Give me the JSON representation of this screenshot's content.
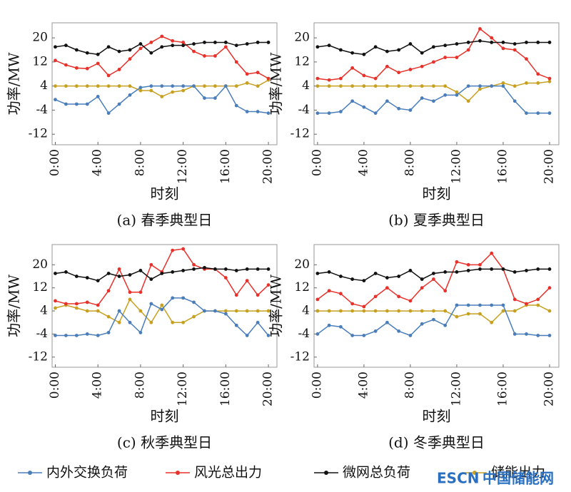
{
  "chart_data": [
    {
      "type": "line",
      "caption": "(a) 春季典型日",
      "xlabel": "时刻",
      "ylabel": "功率/MW",
      "x": [
        0,
        1,
        2,
        3,
        4,
        5,
        6,
        7,
        8,
        9,
        10,
        11,
        12,
        13,
        14,
        15,
        16,
        17,
        18,
        19,
        20
      ],
      "xlim": [
        -0.3,
        20.8
      ],
      "xticks": [
        {
          "value": 0,
          "label": "0:00"
        },
        {
          "value": 4,
          "label": "4:00"
        },
        {
          "value": 8,
          "label": "8:00"
        },
        {
          "value": 12,
          "label": "12:00"
        },
        {
          "value": 16,
          "label": "16:00"
        },
        {
          "value": 20,
          "label": "20:00"
        }
      ],
      "ylim": [
        -15.5,
        25
      ],
      "yticks": [
        -12,
        -4,
        4,
        12,
        20
      ],
      "series": [
        {
          "name": "内外交换负荷",
          "color": "#4a7ebb",
          "values": [
            -0.5,
            -2,
            -2,
            -2,
            0.5,
            -5,
            -2,
            1,
            3.5,
            4,
            4,
            4,
            4,
            4,
            0,
            0,
            4,
            -2.5,
            -4.5,
            -4.5,
            -5
          ]
        },
        {
          "name": "风光总出力",
          "color": "#e8312a",
          "values": [
            12.5,
            11,
            10,
            9.8,
            11.5,
            7.5,
            9.5,
            13,
            16.5,
            18.5,
            20.5,
            19,
            18.5,
            15.5,
            14,
            14,
            17,
            12,
            8,
            8.5,
            6.5
          ]
        },
        {
          "name": "微网总负荷",
          "color": "#111111",
          "values": [
            17,
            17.5,
            16,
            15,
            14.5,
            17,
            15.5,
            16,
            18,
            15,
            17,
            17.5,
            17.5,
            18,
            18.5,
            18.5,
            18.5,
            17.5,
            18,
            18.5,
            18.5
          ]
        },
        {
          "name": "储能出力",
          "color": "#c8a020",
          "values": [
            4,
            4,
            4,
            4,
            4,
            4,
            4,
            4,
            2.5,
            2.5,
            0.5,
            2,
            2.5,
            4,
            4,
            4,
            4,
            4,
            5,
            4,
            6
          ]
        }
      ]
    },
    {
      "type": "line",
      "caption": "(b) 夏季典型日",
      "xlabel": "时刻",
      "ylabel": "功率/MW",
      "x": [
        0,
        1,
        2,
        3,
        4,
        5,
        6,
        7,
        8,
        9,
        10,
        11,
        12,
        13,
        14,
        15,
        16,
        17,
        18,
        19,
        20
      ],
      "xlim": [
        -0.3,
        20.8
      ],
      "xticks": [
        {
          "value": 0,
          "label": "0:00"
        },
        {
          "value": 4,
          "label": "4:00"
        },
        {
          "value": 8,
          "label": "8:00"
        },
        {
          "value": 12,
          "label": "12:00"
        },
        {
          "value": 16,
          "label": "16:00"
        },
        {
          "value": 20,
          "label": "20:00"
        }
      ],
      "ylim": [
        -15.5,
        25
      ],
      "yticks": [
        -12,
        -4,
        4,
        12,
        20
      ],
      "series": [
        {
          "color": "#4a7ebb",
          "values": [
            -5,
            -5,
            -4.5,
            -1,
            -3,
            -5,
            -1,
            -3.5,
            -4,
            0,
            -1,
            1,
            1,
            4,
            4,
            4,
            4,
            -1,
            -5,
            -5,
            -5
          ]
        },
        {
          "color": "#e8312a",
          "values": [
            6.5,
            6,
            6.5,
            10,
            7.5,
            6.5,
            10.5,
            8.5,
            9.5,
            10.5,
            12,
            13.5,
            13.5,
            16,
            23,
            20,
            16.5,
            16,
            13,
            8,
            6.5
          ]
        },
        {
          "color": "#111111",
          "values": [
            17,
            17.5,
            16,
            15,
            14.5,
            17,
            15.5,
            16,
            18,
            15,
            17,
            17.5,
            18,
            18.5,
            19,
            18.5,
            18.5,
            18,
            18.5,
            18.5,
            18.5
          ]
        },
        {
          "color": "#c8a020",
          "values": [
            4,
            4,
            4,
            4,
            4,
            4,
            4,
            4,
            4,
            4,
            4,
            4,
            2,
            -1,
            3,
            4,
            5,
            4,
            5,
            5,
            5.5
          ]
        }
      ]
    },
    {
      "type": "line",
      "caption": "(c) 秋季典型日",
      "xlabel": "时刻",
      "ylabel": "功率/MW",
      "x": [
        0,
        1,
        2,
        3,
        4,
        5,
        6,
        7,
        8,
        9,
        10,
        11,
        12,
        13,
        14,
        15,
        16,
        17,
        18,
        19,
        20
      ],
      "xlim": [
        -0.3,
        20.8
      ],
      "xticks": [
        {
          "value": 0,
          "label": "0:00"
        },
        {
          "value": 4,
          "label": "4:00"
        },
        {
          "value": 8,
          "label": "8:00"
        },
        {
          "value": 12,
          "label": "12:00"
        },
        {
          "value": 16,
          "label": "16:00"
        },
        {
          "value": 20,
          "label": "20:00"
        }
      ],
      "ylim": [
        -15.5,
        27
      ],
      "yticks": [
        -12,
        -4,
        4,
        12,
        20
      ],
      "series": [
        {
          "color": "#4a7ebb",
          "values": [
            -4.5,
            -4.5,
            -4.5,
            -4,
            -4.5,
            -3.5,
            4,
            0,
            -3.5,
            6.5,
            4.5,
            8.5,
            8.5,
            7,
            4,
            4,
            3,
            -1,
            -4.5,
            0,
            -4.5
          ]
        },
        {
          "color": "#e8312a",
          "values": [
            7.5,
            6.5,
            6.5,
            7,
            6,
            11,
            18.5,
            10.5,
            10.5,
            20,
            17.5,
            25,
            25.5,
            20,
            18.5,
            18.5,
            15.5,
            9.5,
            14.5,
            9.5,
            13
          ]
        },
        {
          "color": "#111111",
          "values": [
            17,
            17.5,
            16,
            15.5,
            14.5,
            17,
            16,
            16.5,
            18,
            15,
            17,
            17.5,
            18,
            18.5,
            19,
            18.5,
            18.5,
            18,
            18.5,
            18.5,
            18.5
          ]
        },
        {
          "color": "#c8a020",
          "values": [
            5,
            6,
            5,
            4,
            4,
            2,
            0,
            8,
            4,
            0,
            6,
            0,
            0,
            2,
            4,
            4,
            4,
            4,
            4,
            4,
            4
          ]
        }
      ]
    },
    {
      "type": "line",
      "caption": "(d) 冬季典型日",
      "xlabel": "时刻",
      "ylabel": "功率/MW",
      "x": [
        0,
        1,
        2,
        3,
        4,
        5,
        6,
        7,
        8,
        9,
        10,
        11,
        12,
        13,
        14,
        15,
        16,
        17,
        18,
        19,
        20
      ],
      "xlim": [
        -0.3,
        20.8
      ],
      "xticks": [
        {
          "value": 0,
          "label": "0:00"
        },
        {
          "value": 4,
          "label": "4:00"
        },
        {
          "value": 8,
          "label": "8:00"
        },
        {
          "value": 12,
          "label": "12:00"
        },
        {
          "value": 16,
          "label": "16:00"
        },
        {
          "value": 20,
          "label": "20:00"
        }
      ],
      "ylim": [
        -15.5,
        27
      ],
      "yticks": [
        -12,
        -4,
        4,
        12,
        20
      ],
      "series": [
        {
          "color": "#4a7ebb",
          "values": [
            -4,
            -1,
            -1.5,
            -4.5,
            -4.5,
            -3,
            0,
            -3,
            -4.5,
            -0.5,
            1,
            -1,
            6,
            6,
            6,
            6,
            6,
            -4,
            -4,
            -4.5,
            -4.5
          ]
        },
        {
          "color": "#e8312a",
          "values": [
            8,
            11,
            10,
            6.5,
            5.5,
            9,
            12,
            9,
            7.5,
            12,
            15,
            11,
            21,
            20,
            20,
            24,
            18.5,
            8,
            6.5,
            8,
            12
          ]
        },
        {
          "color": "#111111",
          "values": [
            17,
            17.5,
            16,
            15,
            14.5,
            17,
            15.5,
            16,
            18,
            15,
            17,
            17.5,
            17.5,
            18,
            18.5,
            18.5,
            18.5,
            17.5,
            18,
            18.5,
            18.5
          ]
        },
        {
          "color": "#c8a020",
          "values": [
            4,
            4,
            4,
            4,
            4,
            4,
            4,
            4,
            4,
            4,
            4,
            4,
            2,
            3,
            3,
            0,
            4,
            4,
            6,
            6,
            4
          ]
        }
      ]
    }
  ],
  "watermark": [
    "ESCN",
    "中国储能网"
  ]
}
